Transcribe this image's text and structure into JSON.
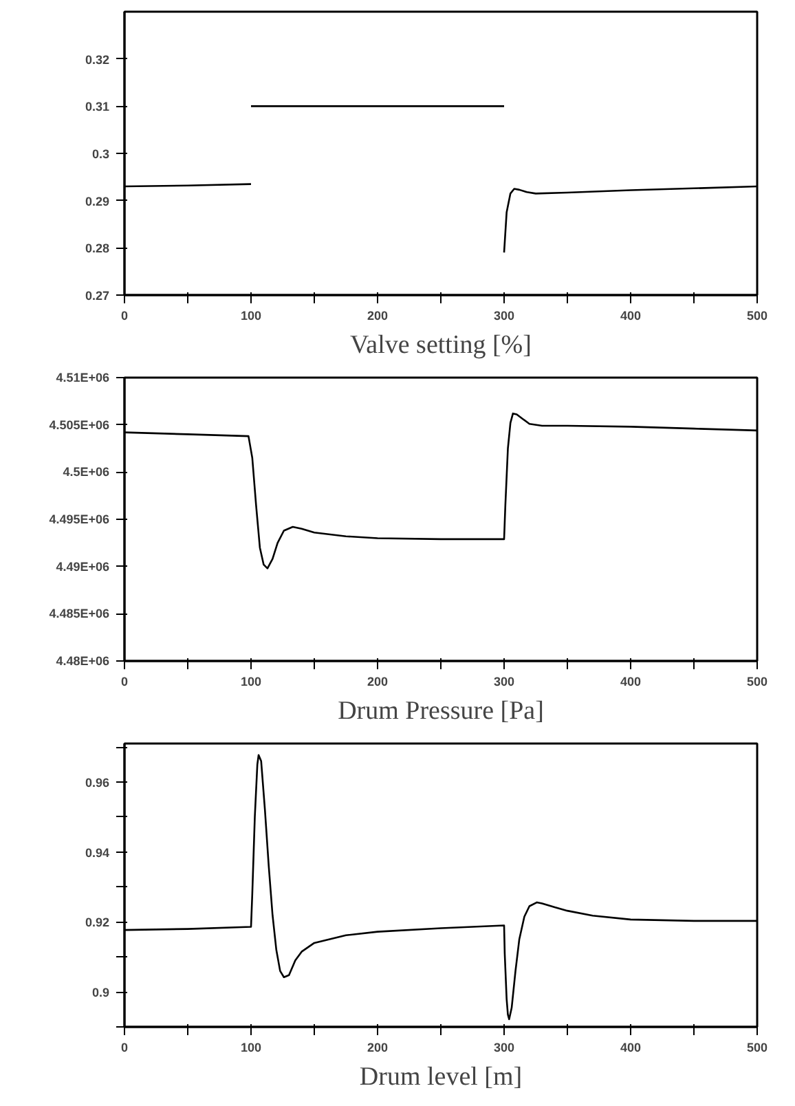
{
  "chart_data": [
    {
      "type": "line",
      "xlabel": "Valve setting [%]",
      "xlim": [
        0,
        500
      ],
      "ylim": [
        0.27,
        0.33
      ],
      "grid": false,
      "line_style": "solid",
      "marker": "none",
      "xticks": [
        0,
        {
          "value": 50,
          "label": null
        },
        100,
        {
          "value": 150,
          "label": null
        },
        200,
        {
          "value": 250,
          "label": null
        },
        300,
        {
          "value": 350,
          "label": null
        },
        400,
        {
          "value": 450,
          "label": null
        },
        500
      ],
      "yticks": [
        0.27,
        0.28,
        0.29,
        0.3,
        0.31,
        0.32
      ],
      "series": [
        {
          "color": "#000000",
          "x": [
            0,
            50,
            100
          ],
          "values": [
            0.293,
            0.2932,
            0.2935
          ]
        },
        {
          "color": "#000000",
          "x": [
            100,
            300
          ],
          "values": [
            0.31,
            0.31
          ]
        },
        {
          "color": "#000000",
          "x": [
            300,
            302,
            305,
            308,
            312,
            318,
            325,
            350,
            400,
            450,
            500
          ],
          "values": [
            0.279,
            0.2875,
            0.2915,
            0.2925,
            0.2923,
            0.2918,
            0.2915,
            0.2917,
            0.2922,
            0.2926,
            0.293
          ]
        }
      ]
    },
    {
      "type": "line",
      "xlabel": "Drum Pressure [Pa]",
      "xlim": [
        0,
        500
      ],
      "ylim": [
        4480000,
        4510000
      ],
      "grid": false,
      "line_style": "solid",
      "marker": "none",
      "xticks": [
        0,
        {
          "value": 50,
          "label": null
        },
        100,
        {
          "value": 150,
          "label": null
        },
        200,
        {
          "value": 250,
          "label": null
        },
        300,
        {
          "value": 350,
          "label": null
        },
        400,
        {
          "value": 450,
          "label": null
        },
        500
      ],
      "yticks": [
        {
          "value": 4480000,
          "label": "4.48E+06"
        },
        {
          "value": 4485000,
          "label": "4.485E+06"
        },
        {
          "value": 4490000,
          "label": "4.49E+06"
        },
        {
          "value": 4495000,
          "label": "4.495E+06"
        },
        {
          "value": 4500000,
          "label": "4.5E+06"
        },
        {
          "value": 4505000,
          "label": "4.505E+06"
        },
        {
          "value": 4510000,
          "label": "4.51E+06"
        }
      ],
      "series": [
        {
          "color": "#000000",
          "x": [
            0,
            50,
            98,
            101,
            104,
            107,
            110,
            113,
            117,
            121,
            126,
            133,
            140,
            150,
            175,
            200,
            250,
            300,
            301,
            303,
            305,
            307,
            310,
            315,
            320,
            330,
            350,
            400,
            450,
            500
          ],
          "values": [
            4504200,
            4504000,
            4503800,
            4501500,
            4496500,
            4492000,
            4490200,
            4489800,
            4490800,
            4492500,
            4493800,
            4494200,
            4494000,
            4493600,
            4493200,
            4493000,
            4492900,
            4492900,
            4496500,
            4502500,
            4505200,
            4506200,
            4506100,
            4505600,
            4505100,
            4504900,
            4504900,
            4504800,
            4504600,
            4504400
          ]
        }
      ]
    },
    {
      "type": "line",
      "xlabel": "Drum level [m]",
      "xlim": [
        0,
        500
      ],
      "ylim": [
        0.89,
        0.971
      ],
      "grid": false,
      "line_style": "solid",
      "marker": "none",
      "xticks": [
        0,
        {
          "value": 50,
          "label": null
        },
        100,
        {
          "value": 150,
          "label": null
        },
        200,
        {
          "value": 250,
          "label": null
        },
        300,
        {
          "value": 350,
          "label": null
        },
        400,
        {
          "value": 450,
          "label": null
        },
        500
      ],
      "yticks": [
        {
          "value": 0.89,
          "label": null
        },
        0.9,
        {
          "value": 0.91,
          "label": null
        },
        0.92,
        {
          "value": 0.93,
          "label": null
        },
        0.94,
        {
          "value": 0.95,
          "label": null
        },
        0.96,
        {
          "value": 0.97,
          "label": null
        }
      ],
      "series": [
        {
          "color": "#000000",
          "x": [
            0,
            50,
            100,
            101,
            103,
            105,
            106,
            108,
            111,
            114,
            117,
            120,
            123,
            126,
            130,
            135,
            140,
            150,
            175,
            200,
            250,
            300,
            300.5,
            302,
            303,
            304,
            306,
            309,
            312,
            316,
            320,
            326,
            330,
            340,
            350,
            370,
            400,
            450,
            500
          ],
          "values": [
            0.9177,
            0.918,
            0.9186,
            0.928,
            0.95,
            0.965,
            0.9677,
            0.966,
            0.952,
            0.936,
            0.922,
            0.912,
            0.906,
            0.9042,
            0.9048,
            0.909,
            0.9115,
            0.914,
            0.9162,
            0.9172,
            0.9182,
            0.919,
            0.911,
            0.898,
            0.8935,
            0.8922,
            0.8955,
            0.906,
            0.915,
            0.9215,
            0.9245,
            0.9256,
            0.9253,
            0.9242,
            0.9232,
            0.9218,
            0.9207,
            0.9203,
            0.9203
          ]
        }
      ]
    }
  ]
}
